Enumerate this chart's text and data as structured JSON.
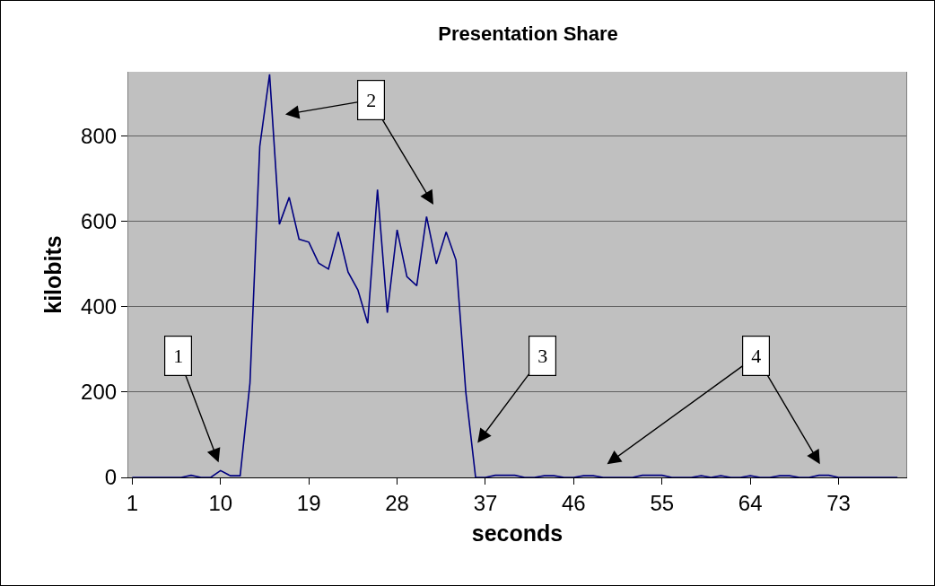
{
  "chart_data": {
    "type": "line",
    "title": "Presentation Share",
    "xlabel": "seconds",
    "ylabel": "kilobits",
    "x": [
      1,
      2,
      3,
      4,
      5,
      6,
      7,
      8,
      9,
      10,
      11,
      12,
      13,
      14,
      15,
      16,
      17,
      18,
      19,
      20,
      21,
      22,
      23,
      24,
      25,
      26,
      27,
      28,
      29,
      30,
      31,
      32,
      33,
      34,
      35,
      36,
      37,
      38,
      39,
      40,
      41,
      42,
      43,
      44,
      45,
      46,
      47,
      48,
      49,
      50,
      51,
      52,
      53,
      54,
      55,
      56,
      57,
      58,
      59,
      60,
      61,
      62,
      63,
      64,
      65,
      66,
      67,
      68,
      69,
      70,
      71,
      72,
      73,
      74,
      75,
      76,
      77,
      78,
      79
    ],
    "series": [
      {
        "color": "#000080",
        "values": [
          0,
          0,
          0,
          0,
          0,
          0,
          5,
          0,
          0,
          16,
          4,
          4,
          221,
          775,
          944,
          593,
          656,
          558,
          551,
          502,
          488,
          575,
          481,
          439,
          361,
          674,
          386,
          580,
          470,
          449,
          611,
          500,
          575,
          509,
          200,
          0,
          0,
          5,
          5,
          5,
          0,
          0,
          4,
          4,
          0,
          0,
          4,
          4,
          0,
          0,
          0,
          0,
          5,
          5,
          5,
          0,
          0,
          0,
          4,
          0,
          4,
          0,
          0,
          4,
          0,
          0,
          4,
          4,
          0,
          0,
          5,
          5,
          0,
          0,
          0,
          0,
          0,
          0,
          0
        ]
      }
    ],
    "xlim": [
      0.6,
      79.9
    ],
    "xticks": [
      1,
      10,
      19,
      28,
      37,
      46,
      55,
      64,
      73
    ],
    "ylim": [
      0,
      950
    ],
    "yticks": [
      0,
      200,
      400,
      600,
      800
    ],
    "grid": "y",
    "marker": "none",
    "line_style": "solid",
    "annotations": [
      "1",
      "2",
      "3",
      "4"
    ]
  }
}
